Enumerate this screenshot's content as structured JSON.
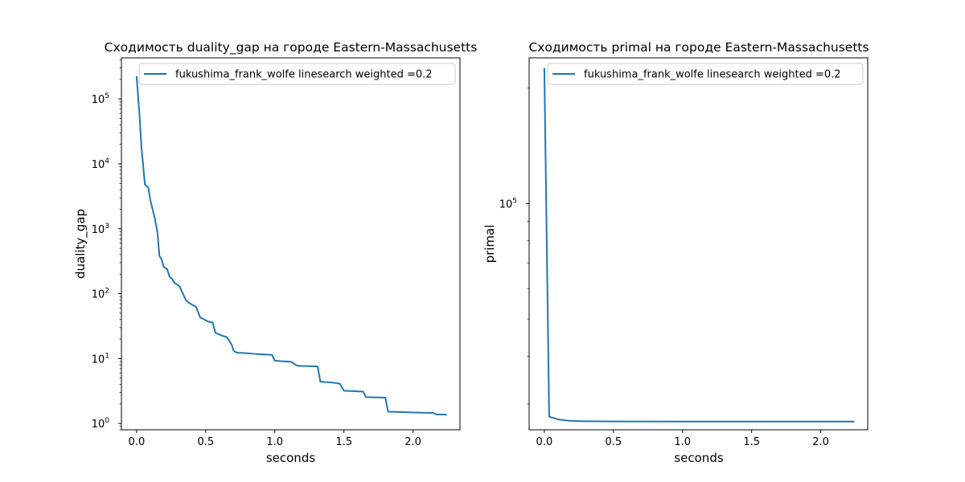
{
  "chart_data": [
    {
      "type": "line",
      "title": "Сходимость duality_gap на городе Eastern-Massachusetts",
      "xlabel": "seconds",
      "ylabel": "duality_gap",
      "yscale": "log",
      "xlim": [
        -0.11,
        2.34
      ],
      "ylim": [
        0.8,
        430000
      ],
      "xticks": [
        "0.0",
        "0.5",
        "1.0",
        "1.5",
        "2.0"
      ],
      "xtick_values": [
        0,
        0.5,
        1.0,
        1.5,
        2.0
      ],
      "yticks": [
        {
          "value": 1,
          "base": "10",
          "exp": "0"
        },
        {
          "value": 10,
          "base": "10",
          "exp": "1"
        },
        {
          "value": 100,
          "base": "10",
          "exp": "2"
        },
        {
          "value": 1000,
          "base": "10",
          "exp": "3"
        },
        {
          "value": 10000,
          "base": "10",
          "exp": "4"
        },
        {
          "value": 100000,
          "base": "10",
          "exp": "5"
        }
      ],
      "legend_position": "upper right",
      "series": [
        {
          "name": "fukushima_frank_wolfe linesearch weighted =0.2",
          "color": "#1f77b4",
          "x": [
            0.0,
            0.02,
            0.035,
            0.06,
            0.085,
            0.1,
            0.13,
            0.15,
            0.165,
            0.18,
            0.195,
            0.22,
            0.24,
            0.255,
            0.275,
            0.29,
            0.31,
            0.345,
            0.355,
            0.37,
            0.38,
            0.4,
            0.43,
            0.46,
            0.47,
            0.49,
            0.52,
            0.55,
            0.57,
            0.59,
            0.62,
            0.65,
            0.67,
            0.69,
            0.7,
            0.71,
            0.73,
            0.77,
            0.82,
            0.86,
            0.88,
            0.95,
            0.98,
            1.0,
            1.02,
            1.05,
            1.1,
            1.12,
            1.14,
            1.16,
            1.18,
            1.3,
            1.31,
            1.33,
            1.4,
            1.44,
            1.47,
            1.5,
            1.64,
            1.66,
            1.8,
            1.82,
            2.15,
            2.17,
            2.24
          ],
          "y": [
            220000,
            60000,
            18000,
            4800,
            4300,
            2700,
            1500,
            900,
            380,
            340,
            260,
            240,
            180,
            170,
            145,
            140,
            130,
            90,
            80,
            75,
            72,
            68,
            63,
            43,
            42,
            40,
            37,
            36,
            25,
            24,
            22.5,
            21.5,
            19,
            16,
            13.5,
            12.8,
            12.3,
            12.2,
            12.0,
            11.8,
            11.7,
            11.5,
            11.4,
            9.3,
            9.2,
            9.1,
            9.0,
            8.9,
            8.3,
            7.8,
            7.7,
            7.6,
            7.5,
            4.4,
            4.3,
            4.2,
            4.1,
            3.2,
            3.1,
            2.55,
            2.5,
            1.52,
            1.45,
            1.38,
            1.37
          ]
        }
      ]
    },
    {
      "type": "line",
      "title": "Сходимость primal на городе Eastern-Massachusetts",
      "xlabel": "seconds",
      "ylabel": "primal",
      "yscale": "log",
      "xlim": [
        -0.11,
        2.34
      ],
      "ylim": [
        25700,
        240000
      ],
      "xticks": [
        "0.0",
        "0.5",
        "1.0",
        "1.5",
        "2.0"
      ],
      "xtick_values": [
        0,
        0.5,
        1.0,
        1.5,
        2.0
      ],
      "yticks": [
        {
          "value": 100000,
          "base": "10",
          "exp": "5"
        }
      ],
      "legend_position": "upper right",
      "series": [
        {
          "name": "fukushima_frank_wolfe linesearch weighted =0.2",
          "color": "#1f77b4",
          "x": [
            0.0,
            0.035,
            0.05,
            0.08,
            0.1,
            0.15,
            0.2,
            0.3,
            0.5,
            1.0,
            1.5,
            2.0,
            2.24
          ],
          "y": [
            225000,
            27800,
            27700,
            27500,
            27350,
            27200,
            27100,
            27050,
            27020,
            27010,
            27005,
            27003,
            27002
          ]
        }
      ]
    }
  ]
}
